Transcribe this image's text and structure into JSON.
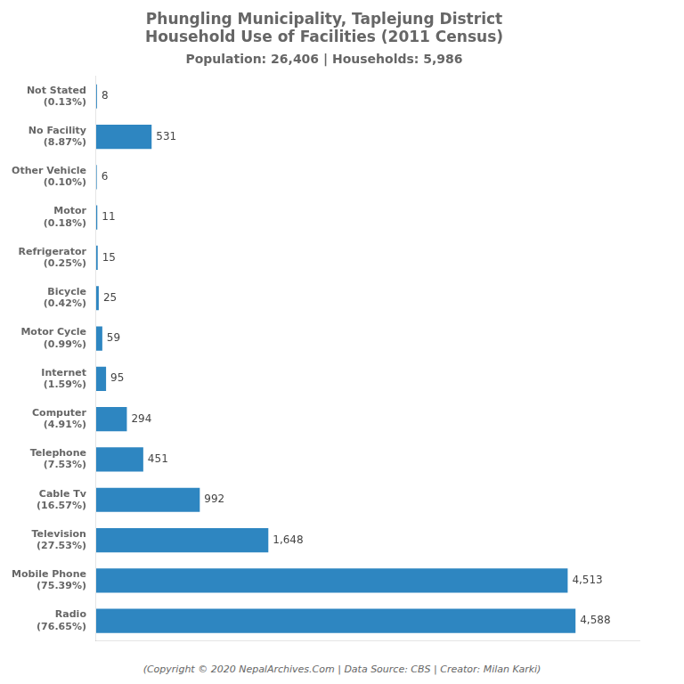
{
  "chart_data": {
    "type": "bar",
    "orientation": "horizontal",
    "title": "Phungling Municipality, Taplejung District\nHousehold Use of Facilities (2011 Census)",
    "subtitle": "Population: 26,406 | Households: 5,986",
    "footer": "(Copyright © 2020 NepalArchives.Com | Data Source: CBS | Creator: Milan Karki)",
    "categories": [
      "Not Stated\n(0.13%)",
      "No Facility\n(8.87%)",
      "Other Vehicle\n(0.10%)",
      "Motor\n(0.18%)",
      "Refrigerator\n(0.25%)",
      "Bicycle\n(0.42%)",
      "Motor Cycle\n(0.99%)",
      "Internet\n(1.59%)",
      "Computer\n(4.91%)",
      "Telephone\n(7.53%)",
      "Cable Tv\n(16.57%)",
      "Television\n(27.53%)",
      "Mobile Phone\n(75.39%)",
      "Radio\n(76.65%)"
    ],
    "values": [
      8,
      531,
      6,
      11,
      15,
      25,
      59,
      95,
      294,
      451,
      992,
      1648,
      4513,
      4588
    ],
    "value_labels": [
      "8",
      "531",
      "6",
      "11",
      "15",
      "25",
      "59",
      "95",
      "294",
      "451",
      "992",
      "1,648",
      "4,513",
      "4,588"
    ],
    "data_labels": true,
    "color": "#2e86c1",
    "xlim": [
      0,
      5200
    ],
    "tick_labels": "y",
    "grid": false
  }
}
